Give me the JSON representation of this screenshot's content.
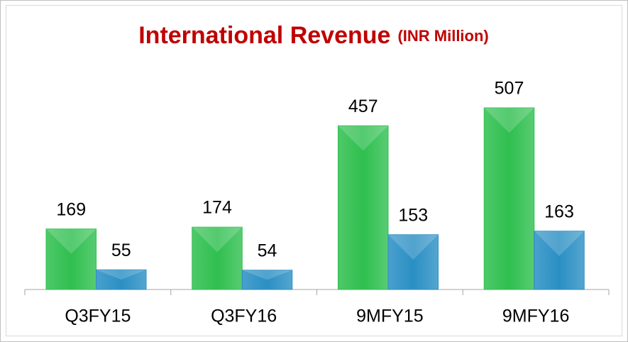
{
  "chart_data": {
    "type": "bar",
    "title": "International Revenue",
    "subtitle": "(INR Million)",
    "categories": [
      "Q3FY15",
      "Q3FY16",
      "9MFY15",
      "9MFY16"
    ],
    "series": [
      {
        "color": "#2fbf4f",
        "values": [
          169,
          174,
          457,
          507
        ]
      },
      {
        "color": "#2a8fc4",
        "values": [
          55,
          54,
          153,
          163
        ]
      }
    ],
    "ylim": [
      0,
      600
    ]
  }
}
